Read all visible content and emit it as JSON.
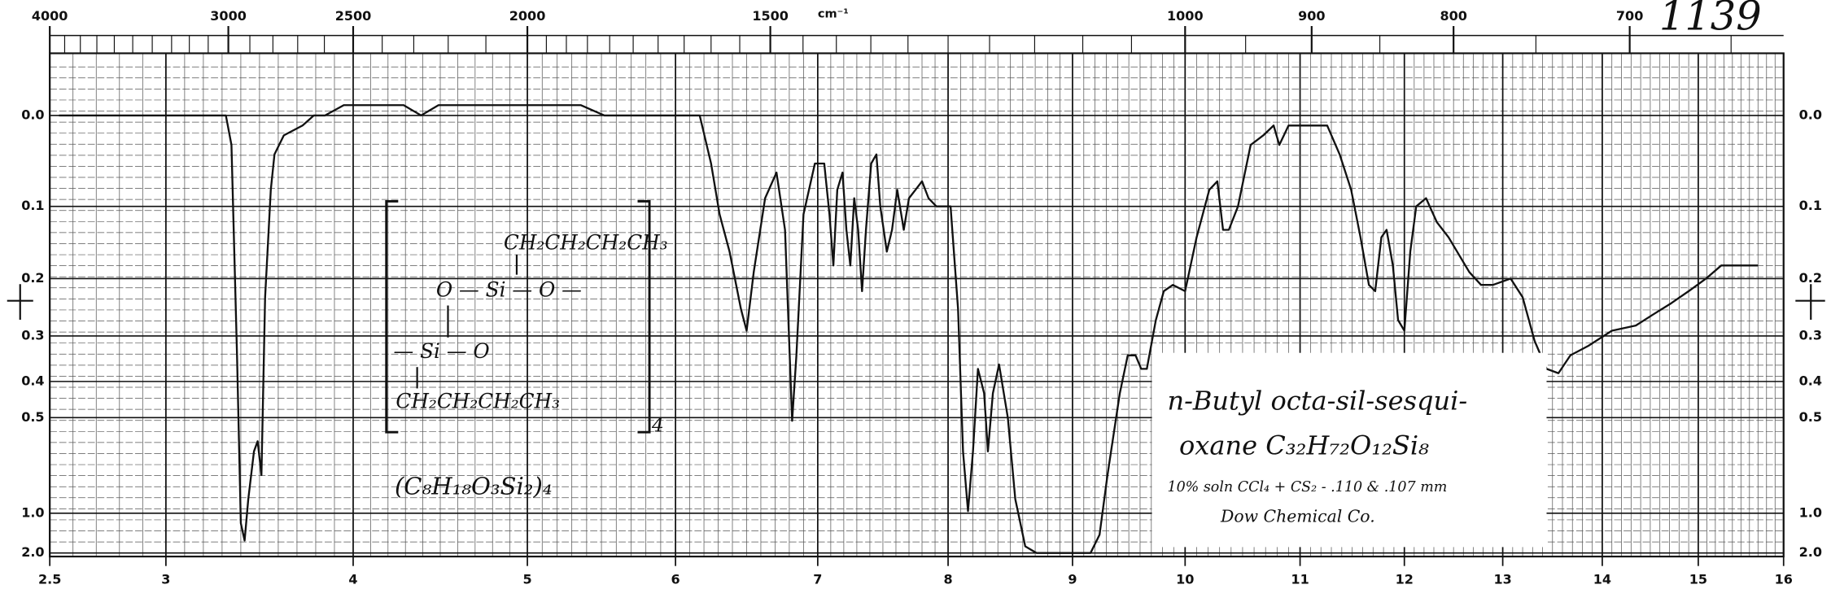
{
  "chart_data": {
    "type": "line",
    "chart_id": "1139",
    "x2label": "cm⁻¹",
    "xlim": [
      2.5,
      16
    ],
    "xticks": [
      {
        "value": 2.5,
        "label": "2.5"
      },
      3,
      4,
      5,
      6,
      7,
      8,
      9,
      10,
      11,
      12,
      13,
      14,
      15,
      16
    ],
    "x2ticks": [
      4000,
      3000,
      2500,
      2000,
      1500,
      1000,
      900,
      800,
      700
    ],
    "ylim": [
      -0.05,
      2
    ],
    "yscale": "absorbance",
    "yticks": [
      {
        "value": 0,
        "label": "0.0"
      },
      0.1,
      0.2,
      0.3,
      0.4,
      0.5,
      {
        "value": 1,
        "label": "1.0"
      },
      {
        "value": 2,
        "label": "2.0"
      }
    ],
    "grid": true,
    "color": "#111111",
    "x": [
      2.54,
      3.06,
      3.22,
      3.32,
      3.35,
      3.38,
      3.4,
      3.42,
      3.44,
      3.47,
      3.49,
      3.51,
      3.53,
      3.56,
      3.58,
      3.63,
      3.73,
      3.79,
      3.85,
      3.95,
      4.15,
      4.29,
      4.39,
      4.49,
      4.69,
      4.9,
      5.12,
      5.36,
      5.52,
      5.76,
      5.92,
      6.17,
      6.25,
      6.31,
      6.38,
      6.46,
      6.5,
      6.55,
      6.63,
      6.71,
      6.77,
      6.82,
      6.85,
      6.9,
      6.98,
      7.05,
      7.09,
      7.12,
      7.15,
      7.19,
      7.22,
      7.25,
      7.28,
      7.31,
      7.34,
      7.37,
      7.41,
      7.45,
      7.48,
      7.53,
      7.57,
      7.61,
      7.66,
      7.7,
      7.75,
      7.8,
      7.85,
      7.91,
      7.97,
      8.02,
      8.08,
      8.12,
      8.16,
      8.2,
      8.24,
      8.29,
      8.32,
      8.36,
      8.41,
      8.48,
      8.54,
      8.62,
      8.71,
      9.16,
      9.24,
      9.31,
      9.42,
      9.49,
      9.56,
      9.61,
      9.66,
      9.74,
      9.81,
      9.89,
      10.0,
      10.1,
      10.21,
      10.28,
      10.33,
      10.38,
      10.46,
      10.57,
      10.68,
      10.77,
      10.82,
      10.9,
      10.98,
      11.15,
      11.26,
      11.38,
      11.49,
      11.58,
      11.66,
      11.72,
      11.78,
      11.83,
      11.89,
      11.94,
      12.0,
      12.06,
      12.12,
      12.22,
      12.33,
      12.45,
      12.66,
      12.78,
      12.9,
      13.08,
      13.2,
      13.32,
      13.44,
      13.56,
      13.68,
      13.86,
      14.1,
      14.35,
      14.53,
      14.72,
      14.9,
      15.09,
      15.27,
      15.46,
      15.58,
      15.7
    ],
    "values": [
      0.0,
      0.0,
      0.0,
      0.0,
      0.03,
      0.34,
      1.11,
      1.42,
      0.88,
      0.62,
      0.58,
      0.73,
      0.23,
      0.08,
      0.04,
      0.02,
      0.01,
      0.0,
      0.0,
      -0.01,
      -0.01,
      -0.01,
      0.0,
      -0.01,
      -0.01,
      -0.01,
      -0.01,
      -0.01,
      0.0,
      0.0,
      0.0,
      0.0,
      0.05,
      0.11,
      0.16,
      0.25,
      0.29,
      0.19,
      0.09,
      0.06,
      0.13,
      0.51,
      0.34,
      0.11,
      0.05,
      0.05,
      0.11,
      0.18,
      0.08,
      0.06,
      0.13,
      0.18,
      0.09,
      0.13,
      0.22,
      0.13,
      0.05,
      0.04,
      0.1,
      0.16,
      0.13,
      0.08,
      0.13,
      0.09,
      0.08,
      0.07,
      0.09,
      0.1,
      0.1,
      0.1,
      0.25,
      0.62,
      0.98,
      0.62,
      0.37,
      0.43,
      0.62,
      0.43,
      0.36,
      0.5,
      0.88,
      1.6,
      2.0,
      2.0,
      1.29,
      0.73,
      0.43,
      0.34,
      0.34,
      0.37,
      0.37,
      0.27,
      0.22,
      0.21,
      0.22,
      0.14,
      0.08,
      0.07,
      0.13,
      0.13,
      0.1,
      0.03,
      0.02,
      0.01,
      0.03,
      0.01,
      0.01,
      0.01,
      0.01,
      0.04,
      0.08,
      0.14,
      0.21,
      0.22,
      0.14,
      0.13,
      0.18,
      0.27,
      0.29,
      0.16,
      0.1,
      0.09,
      0.12,
      0.14,
      0.19,
      0.21,
      0.21,
      0.2,
      0.23,
      0.31,
      0.37,
      0.38,
      0.34,
      0.32,
      0.29,
      0.28,
      0.26,
      0.24,
      0.22,
      0.2,
      0.18,
      0.18,
      0.18,
      0.18
    ],
    "structure": {
      "top_chain": "CH₂CH₂CH₂CH₃",
      "ring_top": "O — Si — O —",
      "ring_bottom": "— Si — O",
      "bottom_chain": "CH₂CH₂CH₂CH₃",
      "multiplier": "4",
      "empirical": "(C₈H₁₈O₃Si₂)₄"
    },
    "label_box": {
      "name": "n-Butyl octa-sil-sesqui-",
      "formula": "oxane  C₃₂H₇₂O₁₂Si₈",
      "conditions": "10% soln  CCl₄ + CS₂ - .110 & .107 mm",
      "source": "Dow Chemical Co."
    }
  }
}
